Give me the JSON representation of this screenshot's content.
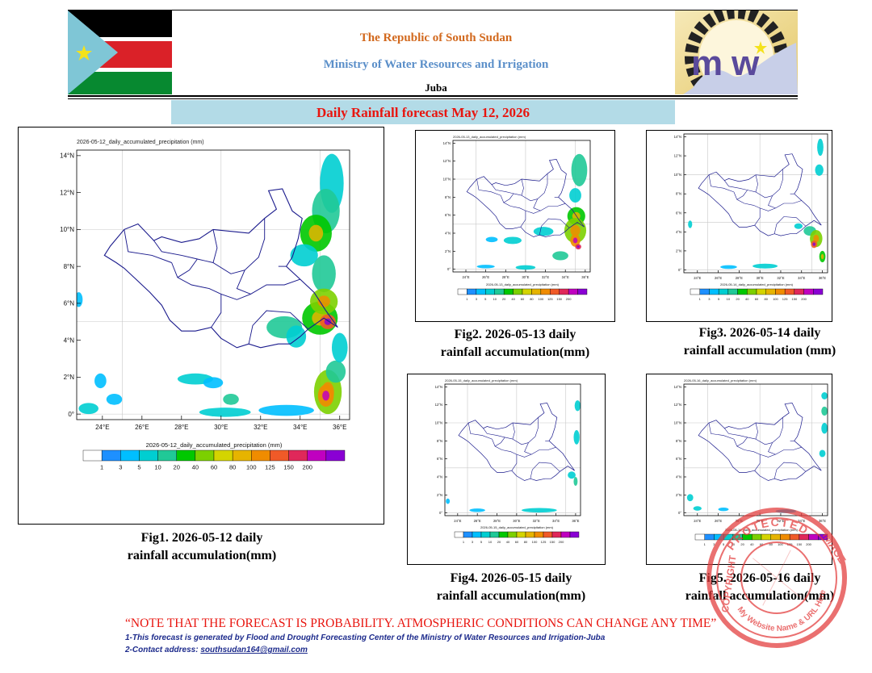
{
  "header": {
    "republic": "The Republic of South Sudan",
    "ministry": "Ministry of Water Resources and Irrigation",
    "city": "Juba",
    "title": "Daily Rainfall forecast May 12, 2026"
  },
  "figures": [
    {
      "id": "fig1",
      "map_title": "2026-05-12_daily_accumulated_precipitation   (mm)",
      "colorbar_label": "2026-05-12_daily_accumulated_precipitation  (mm)",
      "caption_line1": "Fig1. 2026-05-12 daily",
      "caption_line2": "rainfall accumulation(mm)"
    },
    {
      "id": "fig2",
      "map_title": "2026-05-13_daily_accumulated_precipitation   (mm)",
      "colorbar_label": "2026-05-13_daily_accumulated_precipitation  (mm)",
      "caption_line1": "Fig2. 2026-05-13 daily",
      "caption_line2": "rainfall accumulation(mm)"
    },
    {
      "id": "fig3",
      "map_title": "",
      "colorbar_label": "2026-05-14_daily_accumulated_precipitation  (mm)",
      "caption_line1": "Fig3. 2026-05-14 daily",
      "caption_line2": "rainfall accumulation (mm)"
    },
    {
      "id": "fig4",
      "map_title": "2026-05-15_daily_accumulated_precipitation   (mm)",
      "colorbar_label": "2026-05-15_daily_accumulated_precipitation  (mm)",
      "caption_line1": "Fig4. 2026-05-15 daily",
      "caption_line2": "rainfall accumulation(mm)"
    },
    {
      "id": "fig5",
      "map_title": "2026-05-16_daily_accumulated_precipitation   (mm)",
      "colorbar_label": "2026-05-16_daily_accumulated_precipitation  (mm)",
      "caption_line1": "Fig5. 2026-05-16 daily",
      "caption_line2": "rainfall accumulation(mm)"
    }
  ],
  "map_axes": {
    "lat_ticks": [
      "14°N",
      "12°N",
      "10°N",
      "8°N",
      "6°N",
      "4°N",
      "2°N",
      "0°"
    ],
    "lon_ticks": [
      "24°E",
      "26°E",
      "28°E",
      "30°E",
      "32°E",
      "34°E",
      "36°E"
    ]
  },
  "colorbar": {
    "levels": [
      "1",
      "3",
      "5",
      "10",
      "20",
      "40",
      "60",
      "80",
      "100",
      "125",
      "150",
      "200"
    ],
    "colors": [
      "#ffffff",
      "#1e90ff",
      "#00bfff",
      "#00ced1",
      "#20c997",
      "#00c800",
      "#7cd000",
      "#d4d400",
      "#e6b400",
      "#f08c00",
      "#f05a28",
      "#e0285a",
      "#c000c0",
      "#8a00d4"
    ]
  },
  "notes": {
    "warning": "“NOTE THAT THE FORECAST IS PROBABILITY. ATMOSPHERIC CONDITIONS CAN CHANGE ANY TIME”",
    "line1": "1-This forecast is generated by Flood and Drought Forecasting Center of the Ministry of Water Resources and Irrigation-Juba",
    "line2_prefix": "2-Contact address: ",
    "email": "southsudan164@gmail.com"
  },
  "stamp": {
    "top_text": "PROTECTED",
    "left_text": "COPYRIGHT",
    "right_text": "IMAGE",
    "bottom_text": "My Website Name & URL Here"
  }
}
